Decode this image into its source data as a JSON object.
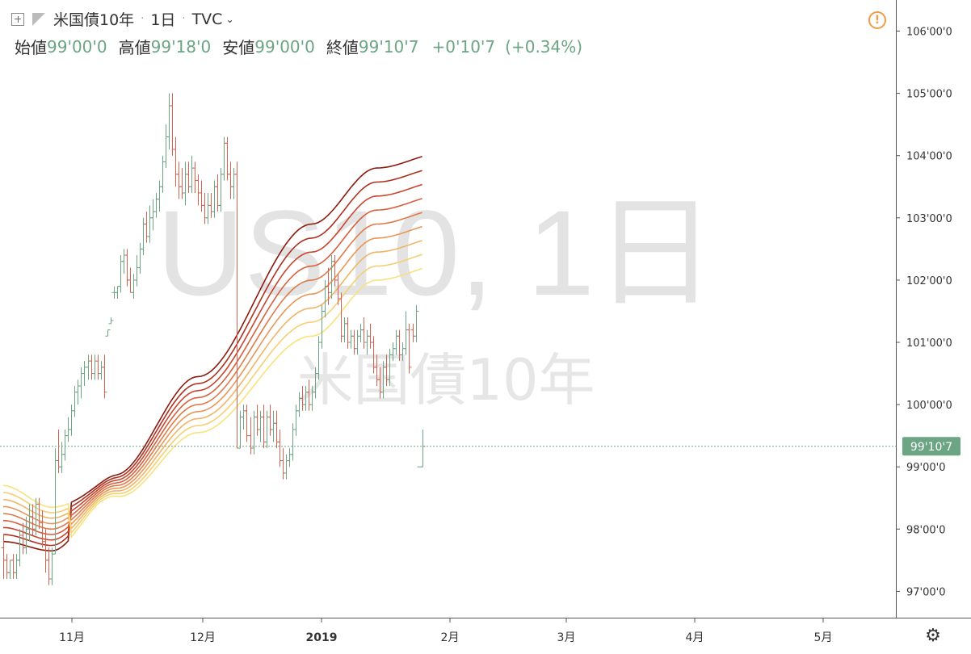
{
  "header": {
    "symbol": "米国債10年",
    "interval": "1日",
    "source": "TVC",
    "open_label": "始値",
    "open": "99'00'0",
    "high_label": "高値",
    "high": "99'18'0",
    "low_label": "安値",
    "low": "99'00'0",
    "close_label": "終値",
    "close": "99'10'7",
    "change": "+0'10'7",
    "change_pct": "(+0.34%)"
  },
  "watermark": {
    "line1": "US10, 1日",
    "line2": "米国債10年"
  },
  "colors": {
    "up": "#6ba583",
    "down": "#d7604f",
    "price_line": "#6ba583",
    "alert": "#f29b46",
    "ribbon": [
      "#8b1a0e",
      "#b0301e",
      "#c8452e",
      "#d6603c",
      "#e07a48",
      "#e99656",
      "#f0b466",
      "#f5cf74",
      "#f8e27c"
    ]
  },
  "icons": {
    "alert": "alert-icon",
    "settings": "gear-icon",
    "toggle": "toggle-box-icon"
  },
  "chart_data": {
    "type": "bar",
    "subtype": "ohlc",
    "y_ticks": [
      "106'00'0",
      "105'00'0",
      "104'00'0",
      "103'00'0",
      "102'00'0",
      "101'00'0",
      "100'00'0",
      "99'00'0",
      "98'00'0",
      "97'00'0"
    ],
    "x_ticks": [
      "11月",
      "12月",
      "2019",
      "2月",
      "3月",
      "4月",
      "5月"
    ],
    "ylim": [
      96.3,
      106.6
    ],
    "last_price_label": "99'10'7",
    "last_price": 99.33,
    "bars": [
      [
        97.7,
        97.9,
        97.2,
        97.5
      ],
      [
        97.5,
        97.6,
        97.2,
        97.3
      ],
      [
        97.3,
        97.5,
        97.2,
        97.5
      ],
      [
        97.5,
        97.6,
        97.2,
        97.3
      ],
      [
        97.3,
        97.6,
        97.2,
        97.5
      ],
      [
        97.5,
        98.0,
        97.4,
        97.9
      ],
      [
        97.9,
        98.1,
        97.6,
        97.7
      ],
      [
        97.7,
        98.2,
        97.6,
        98.0
      ],
      [
        98.0,
        98.4,
        97.8,
        98.2
      ],
      [
        98.2,
        98.4,
        97.9,
        98.0
      ],
      [
        98.0,
        98.5,
        97.9,
        98.4
      ],
      [
        98.4,
        98.5,
        98.0,
        98.1
      ],
      [
        98.1,
        98.3,
        97.7,
        97.8
      ],
      [
        97.8,
        98.0,
        97.3,
        97.5
      ],
      [
        97.5,
        97.7,
        97.1,
        97.2
      ],
      [
        97.2,
        97.7,
        97.1,
        97.6
      ],
      [
        97.6,
        99.3,
        97.6,
        99.1
      ],
      [
        99.1,
        99.6,
        98.9,
        99.0
      ],
      [
        99.0,
        99.4,
        98.9,
        99.2
      ],
      [
        99.2,
        99.6,
        99.1,
        99.5
      ],
      [
        99.5,
        99.8,
        99.4,
        99.6
      ],
      [
        99.6,
        100.0,
        99.5,
        99.9
      ],
      [
        99.9,
        100.3,
        99.8,
        100.2
      ],
      [
        100.2,
        100.4,
        100.0,
        100.3
      ],
      [
        100.3,
        100.6,
        100.1,
        100.5
      ],
      [
        100.5,
        100.7,
        100.3,
        100.6
      ],
      [
        100.6,
        100.8,
        100.4,
        100.7
      ],
      [
        100.7,
        100.8,
        100.4,
        100.5
      ],
      [
        100.5,
        100.8,
        100.4,
        100.7
      ],
      [
        100.7,
        100.8,
        100.4,
        100.5
      ],
      [
        100.5,
        100.7,
        100.4,
        100.6
      ],
      [
        100.6,
        100.8,
        100.1,
        100.2
      ],
      [
        101.1,
        101.2,
        101.1,
        101.2
      ],
      [
        101.3,
        101.4,
        101.3,
        101.35
      ],
      [
        101.8,
        101.9,
        101.7,
        101.8
      ],
      [
        101.8,
        101.9,
        101.7,
        101.9
      ],
      [
        101.9,
        102.4,
        101.8,
        102.3
      ],
      [
        102.3,
        102.5,
        102.1,
        102.4
      ],
      [
        102.4,
        102.5,
        101.9,
        102.0
      ],
      [
        102.0,
        102.2,
        101.8,
        101.8
      ],
      [
        101.8,
        102.1,
        101.7,
        102.0
      ],
      [
        102.0,
        102.4,
        101.9,
        102.2
      ],
      [
        102.2,
        102.6,
        102.1,
        102.5
      ],
      [
        102.5,
        103.0,
        102.4,
        102.9
      ],
      [
        102.9,
        103.1,
        102.6,
        102.7
      ],
      [
        102.7,
        103.2,
        102.6,
        103.0
      ],
      [
        103.0,
        103.3,
        102.8,
        103.1
      ],
      [
        103.1,
        103.4,
        103.0,
        103.3
      ],
      [
        103.3,
        103.6,
        103.1,
        103.5
      ],
      [
        103.5,
        104.0,
        103.4,
        103.9
      ],
      [
        103.9,
        104.5,
        103.8,
        104.3
      ],
      [
        104.3,
        105.0,
        104.1,
        104.8
      ],
      [
        104.8,
        105.0,
        104.0,
        104.1
      ],
      [
        104.1,
        104.3,
        103.5,
        103.7
      ],
      [
        103.7,
        103.9,
        103.3,
        103.5
      ],
      [
        103.5,
        103.8,
        103.3,
        103.4
      ],
      [
        103.4,
        103.9,
        103.2,
        103.7
      ],
      [
        103.7,
        103.9,
        103.4,
        103.5
      ],
      [
        103.5,
        104.0,
        103.4,
        103.8
      ],
      [
        103.8,
        103.9,
        103.4,
        103.6
      ],
      [
        103.6,
        103.7,
        103.2,
        103.4
      ],
      [
        103.4,
        103.6,
        103.1,
        103.2
      ],
      [
        103.2,
        103.4,
        102.9,
        103.0
      ],
      [
        103.0,
        103.4,
        102.9,
        103.2
      ],
      [
        103.2,
        103.4,
        103.0,
        103.1
      ],
      [
        103.1,
        103.6,
        103.0,
        103.5
      ],
      [
        103.5,
        103.7,
        103.1,
        103.2
      ],
      [
        103.2,
        103.8,
        103.1,
        103.7
      ],
      [
        103.7,
        104.3,
        103.6,
        104.2
      ],
      [
        104.2,
        104.3,
        103.6,
        103.7
      ],
      [
        103.7,
        103.9,
        103.3,
        103.5
      ],
      [
        103.5,
        103.8,
        103.3,
        103.7
      ],
      [
        103.7,
        103.9,
        99.3,
        99.3
      ],
      [
        99.3,
        99.9,
        99.3,
        99.8
      ],
      [
        99.8,
        100.0,
        99.6,
        99.9
      ],
      [
        99.9,
        100.0,
        99.4,
        99.5
      ],
      [
        99.5,
        99.8,
        99.2,
        99.3
      ],
      [
        99.3,
        99.9,
        99.2,
        99.8
      ],
      [
        99.8,
        100.0,
        99.5,
        99.6
      ],
      [
        99.6,
        99.9,
        99.4,
        99.8
      ],
      [
        99.8,
        100.0,
        99.3,
        99.4
      ],
      [
        99.4,
        99.9,
        99.3,
        99.8
      ],
      [
        99.8,
        100.0,
        99.5,
        99.6
      ],
      [
        99.6,
        99.9,
        99.4,
        99.7
      ],
      [
        99.7,
        99.9,
        99.3,
        99.4
      ],
      [
        99.4,
        99.6,
        99.0,
        99.1
      ],
      [
        99.1,
        99.3,
        98.8,
        98.9
      ],
      [
        98.9,
        99.2,
        98.8,
        99.1
      ],
      [
        99.1,
        99.3,
        99.0,
        99.2
      ],
      [
        99.2,
        99.7,
        99.1,
        99.6
      ],
      [
        99.6,
        100.0,
        99.5,
        99.9
      ],
      [
        99.9,
        100.2,
        99.8,
        100.1
      ],
      [
        100.1,
        100.3,
        99.9,
        100.0
      ],
      [
        100.0,
        100.3,
        99.9,
        100.2
      ],
      [
        100.2,
        100.4,
        99.9,
        100.0
      ],
      [
        100.0,
        100.3,
        99.9,
        100.2
      ],
      [
        100.2,
        100.6,
        100.1,
        100.5
      ],
      [
        100.5,
        101.1,
        100.4,
        101.0
      ],
      [
        101.0,
        101.6,
        100.9,
        101.5
      ],
      [
        101.5,
        102.0,
        101.4,
        101.9
      ],
      [
        101.9,
        102.2,
        101.6,
        101.8
      ],
      [
        101.8,
        102.4,
        101.7,
        102.3
      ],
      [
        102.3,
        102.4,
        101.9,
        102.0
      ],
      [
        102.0,
        102.1,
        101.6,
        101.7
      ],
      [
        101.7,
        101.8,
        101.0,
        101.1
      ],
      [
        101.1,
        101.4,
        101.0,
        101.3
      ],
      [
        101.3,
        101.4,
        100.9,
        101.0
      ],
      [
        101.0,
        101.2,
        100.9,
        101.1
      ],
      [
        101.1,
        101.2,
        100.8,
        100.9
      ],
      [
        100.9,
        101.2,
        100.8,
        101.1
      ],
      [
        101.1,
        101.3,
        101.0,
        101.2
      ],
      [
        101.2,
        101.4,
        100.9,
        101.0
      ],
      [
        101.0,
        101.2,
        100.8,
        101.1
      ],
      [
        101.1,
        101.3,
        100.9,
        101.0
      ],
      [
        101.0,
        101.1,
        100.5,
        100.6
      ],
      [
        100.6,
        100.8,
        100.3,
        100.4
      ],
      [
        100.4,
        100.6,
        100.1,
        100.2
      ],
      [
        100.2,
        100.7,
        100.1,
        100.6
      ],
      [
        100.6,
        100.8,
        100.3,
        100.4
      ],
      [
        100.4,
        100.9,
        100.3,
        100.8
      ],
      [
        100.8,
        101.0,
        100.7,
        100.9
      ],
      [
        100.9,
        101.2,
        100.8,
        101.1
      ],
      [
        101.1,
        101.2,
        100.7,
        100.8
      ],
      [
        100.8,
        101.0,
        100.7,
        100.9
      ],
      [
        100.9,
        101.5,
        100.8,
        101.2
      ],
      [
        101.2,
        101.3,
        100.5,
        100.6
      ],
      [
        101.2,
        101.3,
        101.0,
        101.1
      ],
      [
        101.1,
        101.6,
        101.0,
        101.5
      ],
      [
        99.0,
        99.0,
        99.0,
        99.0
      ],
      [
        99.0,
        99.6,
        99.0,
        99.33
      ]
    ],
    "ribbon_center": [
      [
        0,
        98.25
      ],
      [
        15,
        98.0
      ],
      [
        35,
        98.7
      ],
      [
        60,
        100.0
      ],
      [
        95,
        102.0
      ],
      [
        115,
        102.9
      ],
      [
        136,
        103.15
      ],
      [
        145,
        102.2
      ],
      [
        160,
        101.0
      ],
      [
        175,
        100.5
      ],
      [
        187,
        100.45
      ],
      [
        200,
        100.6
      ],
      [
        212,
        101.0
      ],
      [
        230,
        100.95
      ],
      [
        248,
        100.85
      ],
      [
        260,
        100.8
      ],
      [
        268,
        100.7
      ]
    ],
    "ribbon_spread": [
      [
        0,
        0.45
      ],
      [
        15,
        0.35
      ],
      [
        30,
        0.15
      ],
      [
        60,
        0.45
      ],
      [
        95,
        0.9
      ],
      [
        136,
        0.9
      ],
      [
        145,
        0.2
      ],
      [
        150,
        0.15
      ],
      [
        175,
        0.5
      ],
      [
        187,
        0.55
      ],
      [
        200,
        0.2
      ],
      [
        212,
        0.05
      ],
      [
        250,
        0.12
      ],
      [
        268,
        0.1
      ]
    ]
  }
}
